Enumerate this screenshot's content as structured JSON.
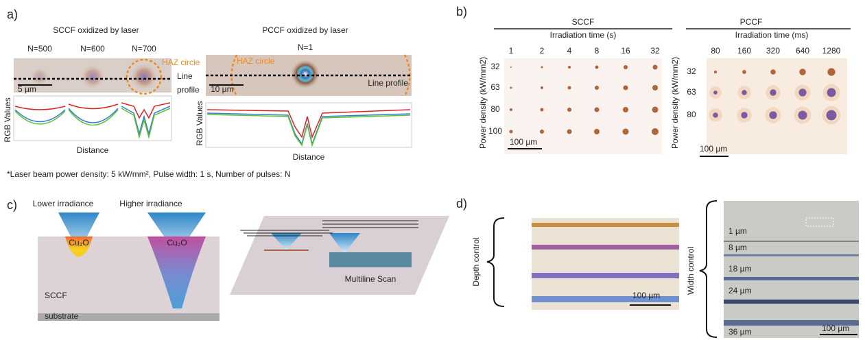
{
  "panel_a": {
    "label": "a)",
    "sccf": {
      "title": "SCCF oxidized by laser",
      "pulses": [
        "N=500",
        "N=600",
        "N=700"
      ],
      "haz": "HAZ circle",
      "line_profile": [
        "Line",
        "profile"
      ],
      "scale": "5 µm",
      "y_label": "RGB Values",
      "x_label": "Distance"
    },
    "pccf": {
      "title": "PCCF oxidized by laser",
      "pulses": "N=1",
      "haz": "HAZ circle",
      "line_profile": "Line profile",
      "scale": "10 µm",
      "y_label": "RGB Values",
      "x_label": "Distance"
    },
    "note": "*Laser beam power density: 5 kW/mm², Pulse width: 1 s, Number of pulses: N"
  },
  "panel_b": {
    "label": "b)",
    "sccf": {
      "title": "SCCF",
      "x_title": "Irradiation time (s)",
      "times": [
        "1",
        "2",
        "4",
        "8",
        "16",
        "32"
      ],
      "y_title": "Power density (kW/mm2)",
      "powers": [
        "32",
        "63",
        "80",
        "100"
      ],
      "scale": "100 µm"
    },
    "pccf": {
      "title": "PCCF",
      "x_title": "Irradiation time (ms)",
      "times": [
        "80",
        "160",
        "320",
        "640",
        "1280"
      ],
      "y_title": "Power density (kW/mm2)",
      "powers": [
        "32",
        "63",
        "80"
      ],
      "scale": "100 µm"
    }
  },
  "panel_c": {
    "label": "c)",
    "lower": "Lower irradiance",
    "higher": "Higher irradiance",
    "oxide": [
      "Cu₂O",
      "Cu₂O"
    ],
    "substrate": [
      "SCCF",
      "substrate"
    ],
    "scan": "Multiline Scan"
  },
  "panel_d": {
    "label": "d)",
    "depth": "Depth control",
    "depth_scale": "100 µm",
    "width": "Width control",
    "widths": [
      "1 µm",
      "8 µm",
      "18 µm",
      "24 µm",
      "36 µm"
    ],
    "width_scale": "100 µm"
  }
}
